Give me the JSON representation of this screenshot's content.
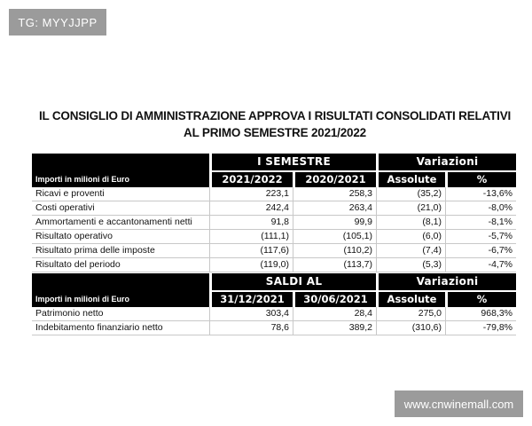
{
  "watermarks": {
    "top_left": "TG: MYYJJPP",
    "bottom_right": "www.cnwinemall.com"
  },
  "title": {
    "line1": "IL CONSIGLIO DI AMMINISTRAZIONE APPROVA I RISULTATI CONSOLIDATI RELATIVI",
    "line2": "AL PRIMO SEMESTRE 2021/2022"
  },
  "table1": {
    "group_header": "I SEMESTRE",
    "variation_header": "Variazioni",
    "row_header": "Importi in milioni di Euro",
    "columns": [
      "2021/2022",
      "2020/2021",
      "Assolute",
      "%"
    ],
    "rows": [
      {
        "label": "Ricavi e proventi",
        "c1": "223,1",
        "c2": "258,3",
        "c3": "(35,2)",
        "c4": "-13,6%"
      },
      {
        "label": "Costi operativi",
        "c1": "242,4",
        "c2": "263,4",
        "c3": "(21,0)",
        "c4": "-8,0%"
      },
      {
        "label": "Ammortamenti e accantonamenti netti",
        "c1": "91,8",
        "c2": "99,9",
        "c3": "(8,1)",
        "c4": "-8,1%"
      },
      {
        "label": "Risultato operativo",
        "c1": "(111,1)",
        "c2": "(105,1)",
        "c3": "(6,0)",
        "c4": "-5,7%"
      },
      {
        "label": "Risultato prima delle imposte",
        "c1": "(117,6)",
        "c2": "(110,2)",
        "c3": "(7,4)",
        "c4": "-6,7%"
      },
      {
        "label": "Risultato del periodo",
        "c1": "(119,0)",
        "c2": "(113,7)",
        "c3": "(5,3)",
        "c4": "-4,7%"
      }
    ]
  },
  "table2": {
    "group_header": "SALDI AL",
    "variation_header": "Variazioni",
    "row_header": "Importi in milioni di Euro",
    "columns": [
      "31/12/2021",
      "30/06/2021",
      "Assolute",
      "%"
    ],
    "rows": [
      {
        "label": "Patrimonio netto",
        "c1": "303,4",
        "c2": "28,4",
        "c3": "275,0",
        "c4": "968,3%"
      },
      {
        "label": "Indebitamento finanziario netto",
        "c1": "78,6",
        "c2": "389,2",
        "c3": "(310,6)",
        "c4": "-79,8%"
      }
    ]
  }
}
